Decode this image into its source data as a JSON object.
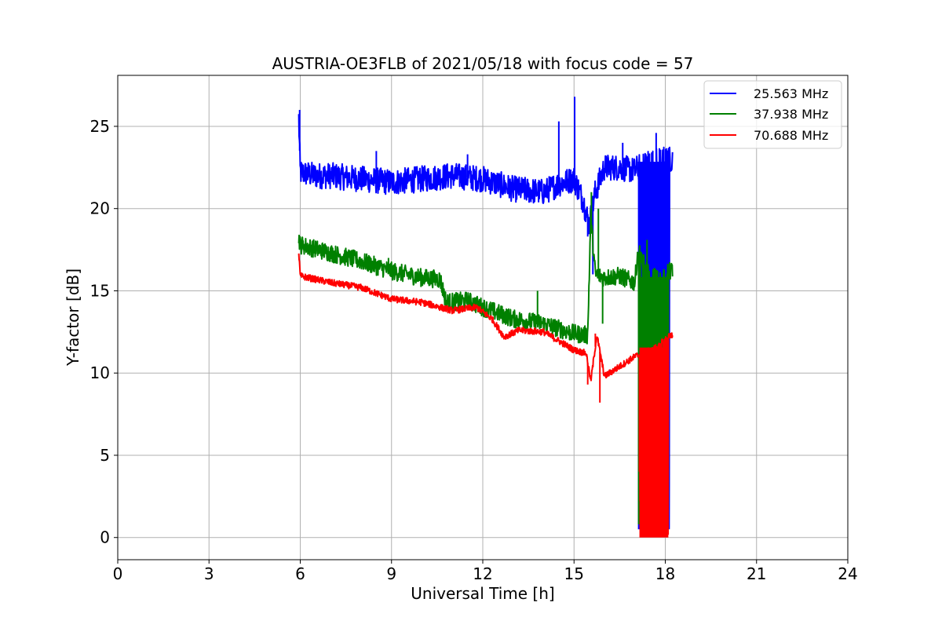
{
  "chart_data": {
    "type": "line",
    "title": "AUSTRIA-OE3FLB of 2021/05/18 with focus code = 57",
    "xlabel": "Universal Time [h]",
    "ylabel": "Y-factor [dB]",
    "xlim": [
      0,
      24
    ],
    "ylim": [
      -1.35,
      28.1
    ],
    "xticks": [
      0,
      3,
      6,
      9,
      12,
      15,
      18,
      21,
      24
    ],
    "xtick_labels": [
      "0",
      "3",
      "6",
      "9",
      "12",
      "15",
      "18",
      "21",
      "24"
    ],
    "yticks": [
      0,
      5,
      10,
      15,
      20,
      25
    ],
    "ytick_labels": [
      "0",
      "5",
      "10",
      "15",
      "20",
      "25"
    ],
    "grid": true,
    "legend_position": "top-right",
    "series": [
      {
        "name": "25.563 MHz",
        "color": "#0000ff",
        "noise": 0.8,
        "x": [
          5.95,
          6.0,
          6.5,
          7.0,
          8.0,
          9.0,
          10.0,
          11.0,
          12.0,
          13.0,
          14.0,
          14.5,
          15.0,
          15.3,
          15.5,
          15.7,
          16.0,
          16.5,
          17.0,
          17.1,
          17.5,
          18.0,
          18.25
        ],
        "y": [
          25.5,
          22.2,
          22.0,
          22.0,
          21.8,
          21.6,
          21.8,
          22.0,
          21.8,
          21.2,
          21.0,
          21.5,
          21.8,
          20.5,
          19.0,
          21.0,
          22.5,
          22.5,
          22.3,
          22.5,
          22.8,
          23.0,
          23.0
        ],
        "spikes": [
          [
            5.98,
            26.0
          ],
          [
            8.5,
            23.5
          ],
          [
            11.5,
            23.3
          ],
          [
            14.5,
            25.3
          ],
          [
            15.02,
            26.8
          ],
          [
            15.45,
            18.3
          ],
          [
            15.62,
            16.0
          ],
          [
            16.6,
            24.0
          ],
          [
            17.7,
            24.6
          ]
        ],
        "band": {
          "x0": 17.1,
          "x1": 18.15,
          "ymin": 0.5
        }
      },
      {
        "name": "37.938 MHz",
        "color": "#008000",
        "noise": 0.55,
        "x": [
          5.95,
          6.0,
          7.0,
          8.0,
          9.0,
          10.0,
          10.6,
          10.8,
          11.5,
          12.0,
          13.0,
          14.0,
          15.0,
          15.45,
          15.55,
          15.7,
          16.0,
          16.5,
          17.0,
          17.1,
          17.5,
          18.0,
          18.25
        ],
        "y": [
          18.3,
          17.8,
          17.3,
          16.8,
          16.2,
          15.8,
          15.7,
          14.3,
          14.4,
          14.0,
          13.3,
          13.0,
          12.4,
          12.3,
          19.5,
          16.0,
          15.8,
          15.9,
          15.5,
          17.5,
          15.8,
          16.0,
          16.3
        ],
        "spikes": [
          [
            8.9,
            17.0
          ],
          [
            13.8,
            15.0
          ],
          [
            15.57,
            21.0
          ],
          [
            15.8,
            20.0
          ],
          [
            15.94,
            13.0
          ],
          [
            17.4,
            18.1
          ]
        ],
        "band": {
          "x0": 17.1,
          "x1": 18.1,
          "ymin": 0.8
        }
      },
      {
        "name": "70.688 MHz",
        "color": "#ff0000",
        "noise": 0.2,
        "x": [
          5.95,
          6.0,
          7.0,
          8.0,
          9.0,
          10.0,
          11.0,
          11.8,
          12.3,
          12.7,
          13.2,
          14.0,
          15.0,
          15.4,
          15.55,
          15.75,
          16.0,
          16.5,
          17.0,
          17.5,
          18.0,
          18.25
        ],
        "y": [
          17.3,
          15.9,
          15.5,
          15.2,
          14.5,
          14.3,
          13.8,
          14.0,
          13.3,
          12.2,
          12.6,
          12.5,
          11.4,
          11.2,
          9.5,
          12.3,
          9.8,
          10.4,
          11.0,
          11.4,
          12.0,
          12.4
        ],
        "spikes": [
          [
            15.45,
            9.3
          ],
          [
            15.7,
            12.4
          ],
          [
            15.85,
            8.2
          ],
          [
            17.15,
            4.0
          ],
          [
            17.55,
            4.2
          ]
        ],
        "band": {
          "x0": 17.15,
          "x1": 18.1,
          "ymin": 0.0
        }
      }
    ]
  }
}
